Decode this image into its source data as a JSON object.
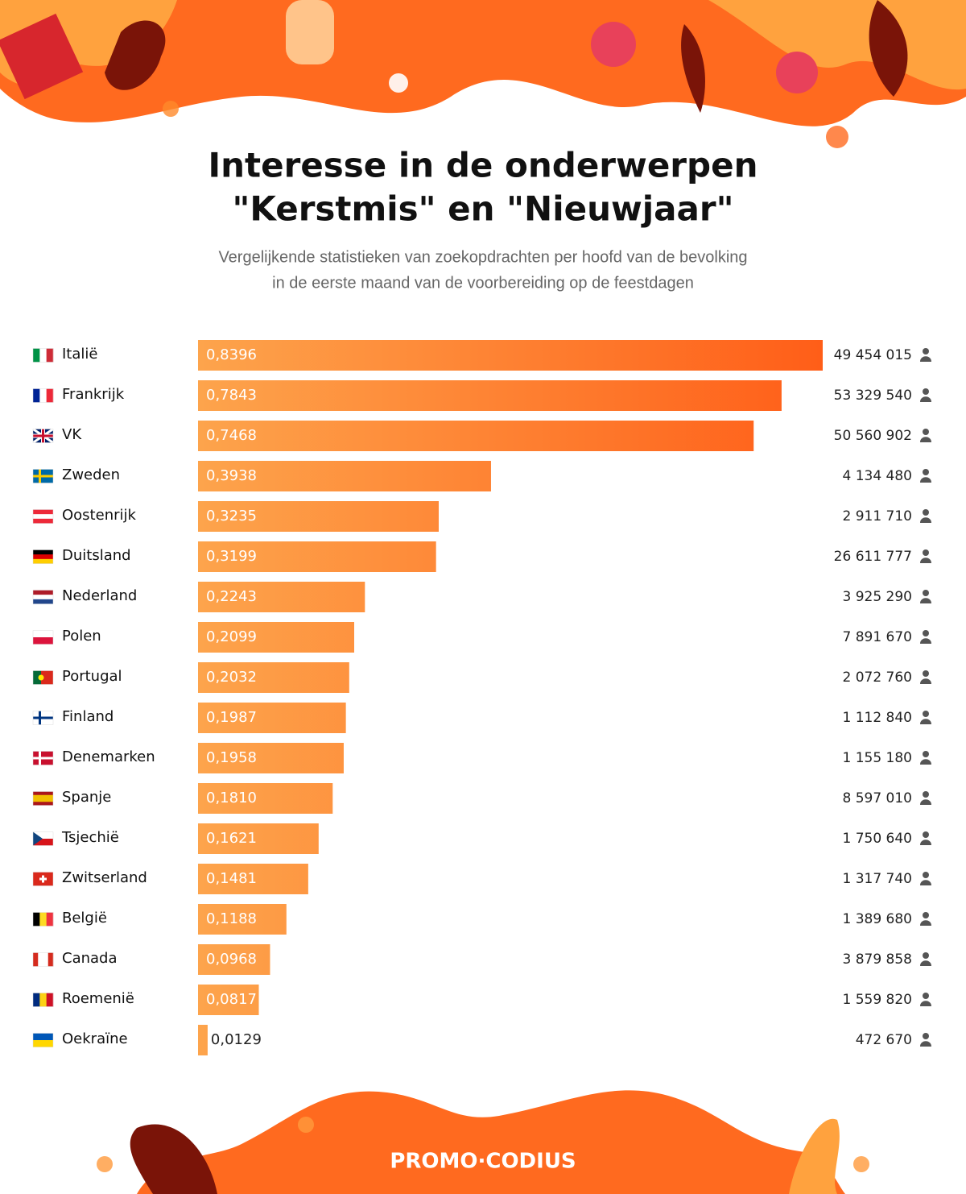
{
  "chart_data": {
    "type": "bar",
    "title": [
      "Interesse in de onderwerpen",
      "\"Kerstmis\" en \"Nieuwjaar\""
    ],
    "subtitle": [
      "Vergelijkende statistieken van zoekopdrachten per hoofd van de bevolking",
      "in de eerste maand van de voorbereiding op de feestdagen"
    ],
    "categories": [
      "Italië",
      "Frankrijk",
      "VK",
      "Zweden",
      "Oostenrijk",
      "Duitsland",
      "Nederland",
      "Polen",
      "Portugal",
      "Finland",
      "Denemarken",
      "Spanje",
      "Tsjechië",
      "Zwitserland",
      "België",
      "Canada",
      "Roemenië",
      "Oekraïne"
    ],
    "values": [
      0.8396,
      0.7843,
      0.7468,
      0.3938,
      0.3235,
      0.3199,
      0.2243,
      0.2099,
      0.2032,
      0.1987,
      0.1958,
      0.181,
      0.1621,
      0.1481,
      0.1188,
      0.0968,
      0.0817,
      0.0129
    ],
    "value_labels": [
      "0,8396",
      "0,7843",
      "0,7468",
      "0,3938",
      "0,3235",
      "0,3199",
      "0,2243",
      "0,2099",
      "0,2032",
      "0,1987",
      "0,1958",
      "0,1810",
      "0,1621",
      "0,1481",
      "0,1188",
      "0,0968",
      "0,0817",
      "0,0129"
    ],
    "population": [
      49454015,
      53329540,
      50560902,
      4134480,
      2911710,
      26611777,
      3925290,
      7891670,
      2072760,
      1112840,
      1155180,
      8597010,
      1750640,
      1317740,
      1389680,
      3879858,
      1559820,
      472670
    ],
    "population_labels": [
      "49 454 015",
      "53 329 540",
      "50 560 902",
      "4 134 480",
      "2 911 710",
      "26 611 777",
      "3 925 290",
      "7 891 670",
      "2 072 760",
      "1 112 840",
      "1 155 180",
      "8 597 010",
      "1 750 640",
      "1 317 740",
      "1 389 680",
      "3 879 858",
      "1 559 820",
      "472 670"
    ],
    "logo": "PROMO·CODIUS"
  }
}
